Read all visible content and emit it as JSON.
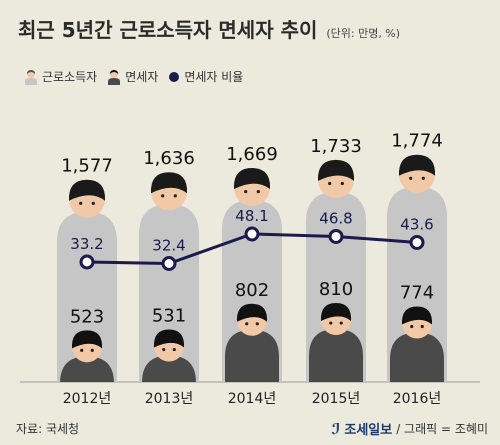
{
  "header": {
    "title": "최근 5년간 근로소득자 면세자 추이",
    "unit": "(단위: 만명, %)"
  },
  "legend": {
    "workers": "근로소득자",
    "exempt": "면세자",
    "ratio": "면세자 비율"
  },
  "footer": {
    "source": "자료: 국세청",
    "publisher": "조세일보",
    "graphic": "/ 그래픽 = 조혜미"
  },
  "colors": {
    "background": "#ece9dd",
    "workers_body": "#c6c6c6",
    "exempt_body": "#4a4a4a",
    "face": "#f1c9a7",
    "hair": "#111111",
    "ratio_line": "#1c1a4d"
  },
  "chart_data": {
    "type": "bar",
    "categories": [
      "2012년",
      "2013년",
      "2014년",
      "2015년",
      "2016년"
    ],
    "series": [
      {
        "name": "근로소득자",
        "values": [
          1577,
          1636,
          1669,
          1733,
          1774
        ]
      },
      {
        "name": "면세자",
        "values": [
          523,
          531,
          802,
          810,
          774
        ]
      },
      {
        "name": "면세자 비율",
        "values": [
          33.2,
          32.4,
          48.1,
          46.8,
          43.6
        ]
      }
    ],
    "labels": {
      "workers": [
        "1,577",
        "1,636",
        "1,669",
        "1,733",
        "1,774"
      ],
      "exempt": [
        "523",
        "531",
        "802",
        "810",
        "774"
      ],
      "ratio": [
        "33.2",
        "32.4",
        "48.1",
        "46.8",
        "43.6"
      ]
    }
  }
}
